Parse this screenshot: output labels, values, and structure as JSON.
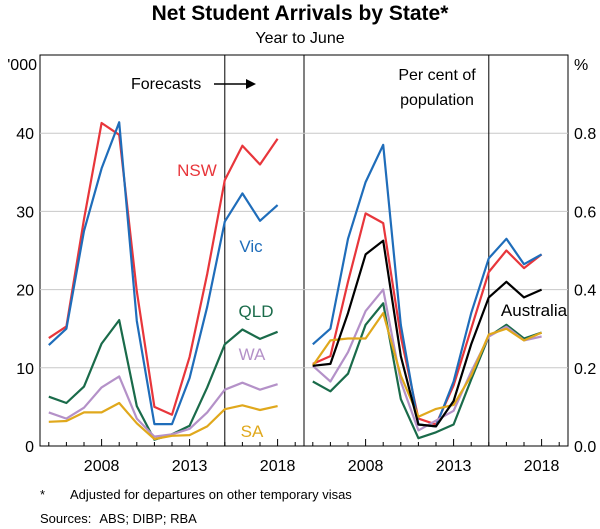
{
  "title": "Net Student Arrivals by State*",
  "subtitle": "Year to June",
  "footnote_mark": "*",
  "footnote_text": "Adjusted for departures on other temporary visas",
  "sources_label": "Sources:",
  "sources_text": "ABS; DIBP; RBA",
  "colors": {
    "NSW": "#e8363b",
    "Vic": "#1f6dba",
    "QLD": "#1a6b4a",
    "WA": "#b491c8",
    "SA": "#e0a81c",
    "Australia": "#000000"
  },
  "chart_data": [
    {
      "type": "line",
      "panel": "left",
      "y_unit_label": "'000",
      "ylim": [
        0,
        50
      ],
      "yticks": [
        "0",
        "10",
        "20",
        "30",
        "40"
      ],
      "xlim": [
        2004.5,
        2019.5
      ],
      "xticks": [
        "2008",
        "2013",
        "2018"
      ],
      "forecast_start": 2015,
      "annotation": "Forecasts",
      "x": [
        2005,
        2006,
        2007,
        2008,
        2009,
        2010,
        2011,
        2012,
        2013,
        2014,
        2015,
        2016,
        2017,
        2018
      ],
      "series": [
        {
          "name": "NSW",
          "values": [
            13.8,
            15.3,
            29.0,
            41.3,
            39.8,
            19.8,
            5.0,
            4.0,
            11.4,
            22.0,
            34.0,
            38.4,
            36.0,
            39.3
          ]
        },
        {
          "name": "Vic",
          "values": [
            12.9,
            15.0,
            27.5,
            35.5,
            41.4,
            16.0,
            2.8,
            2.8,
            8.7,
            17.8,
            28.7,
            32.3,
            28.8,
            30.8
          ]
        },
        {
          "name": "QLD",
          "values": [
            6.3,
            5.5,
            7.6,
            13.1,
            16.1,
            5.1,
            0.8,
            1.5,
            2.6,
            7.5,
            13.0,
            14.9,
            13.7,
            14.6
          ]
        },
        {
          "name": "WA",
          "values": [
            4.3,
            3.5,
            4.9,
            7.5,
            8.9,
            3.5,
            1.2,
            1.5,
            2.2,
            4.3,
            7.2,
            8.1,
            7.2,
            7.9
          ]
        },
        {
          "name": "SA",
          "values": [
            3.1,
            3.2,
            4.3,
            4.3,
            5.5,
            2.9,
            0.9,
            1.3,
            1.4,
            2.5,
            4.7,
            5.2,
            4.6,
            5.1
          ]
        }
      ],
      "labels": [
        "NSW",
        "Vic",
        "QLD",
        "WA",
        "SA"
      ]
    },
    {
      "type": "line",
      "panel": "right",
      "y_unit_label": "%",
      "ylim": [
        0,
        1.0
      ],
      "yticks": [
        "0.0",
        "0.2",
        "0.4",
        "0.6",
        "0.8"
      ],
      "xlim": [
        2004.5,
        2019.5
      ],
      "xticks": [
        "2008",
        "2013",
        "2018"
      ],
      "forecast_start": 2015,
      "annotation": "Per cent of population",
      "annotation_lines": [
        "Per cent of",
        "population"
      ],
      "x": [
        2005,
        2006,
        2007,
        2008,
        2009,
        2010,
        2011,
        2012,
        2013,
        2014,
        2015,
        2016,
        2017,
        2018
      ],
      "series": [
        {
          "name": "NSW",
          "values": [
            0.21,
            0.23,
            0.42,
            0.595,
            0.57,
            0.28,
            0.07,
            0.055,
            0.155,
            0.3,
            0.445,
            0.5,
            0.455,
            0.49
          ]
        },
        {
          "name": "Vic",
          "values": [
            0.26,
            0.3,
            0.53,
            0.675,
            0.77,
            0.31,
            0.055,
            0.05,
            0.165,
            0.34,
            0.48,
            0.53,
            0.465,
            0.49
          ]
        },
        {
          "name": "QLD",
          "values": [
            0.165,
            0.14,
            0.185,
            0.31,
            0.365,
            0.12,
            0.02,
            0.035,
            0.055,
            0.17,
            0.28,
            0.31,
            0.275,
            0.29
          ]
        },
        {
          "name": "WA",
          "values": [
            0.205,
            0.165,
            0.24,
            0.345,
            0.4,
            0.165,
            0.04,
            0.065,
            0.09,
            0.19,
            0.28,
            0.305,
            0.27,
            0.28
          ]
        },
        {
          "name": "SA",
          "values": [
            0.205,
            0.27,
            0.275,
            0.275,
            0.34,
            0.18,
            0.075,
            0.095,
            0.105,
            0.18,
            0.285,
            0.3,
            0.27,
            0.29
          ]
        },
        {
          "name": "Australia",
          "values": [
            0.205,
            0.21,
            0.34,
            0.49,
            0.525,
            0.23,
            0.055,
            0.05,
            0.115,
            0.26,
            0.38,
            0.42,
            0.38,
            0.4
          ]
        }
      ],
      "labels": [
        "Australia"
      ]
    }
  ]
}
